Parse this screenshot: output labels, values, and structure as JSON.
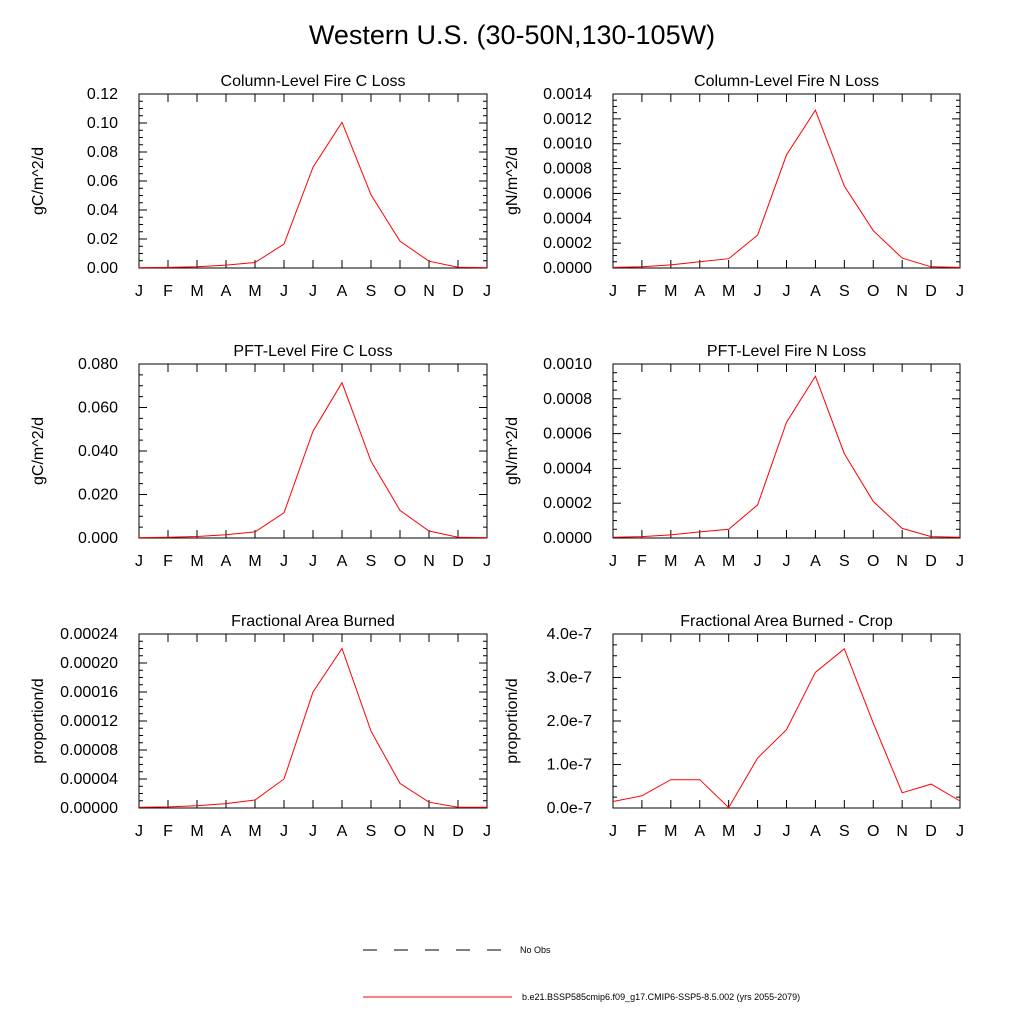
{
  "page_title": "Western U.S. (30-50N,130-105W)",
  "legend": {
    "entries": [
      {
        "label": "No Obs",
        "style": "dashed",
        "color": "#000000"
      },
      {
        "label": "b.e21.BSSP585cmip6.f09_g17.CMIP6-SSP5-8.5.002 (yrs 2055-2079)",
        "style": "solid",
        "color": "#ff0000"
      }
    ]
  },
  "chart_data": [
    {
      "type": "line",
      "title": "Column-Level Fire C Loss",
      "ylabel": "gC/m^2/d",
      "x": [
        "J",
        "F",
        "M",
        "A",
        "M",
        "J",
        "J",
        "A",
        "S",
        "O",
        "N",
        "D",
        "J"
      ],
      "ylim": [
        0,
        0.12
      ],
      "yticks": [
        "0.00",
        "0.02",
        "0.04",
        "0.06",
        "0.08",
        "0.10",
        "0.12"
      ],
      "series": [
        {
          "color": "#ff0000",
          "values": [
            0.0003,
            0.0004,
            0.0008,
            0.002,
            0.0038,
            0.0165,
            0.0695,
            0.1005,
            0.0505,
            0.0185,
            0.0047,
            0.0005,
            0.0003
          ]
        }
      ]
    },
    {
      "type": "line",
      "title": "Column-Level Fire N Loss",
      "ylabel": "gN/m^2/d",
      "x": [
        "J",
        "F",
        "M",
        "A",
        "M",
        "J",
        "J",
        "A",
        "S",
        "O",
        "N",
        "D",
        "J"
      ],
      "ylim": [
        0,
        0.0014
      ],
      "yticks": [
        "0.0000",
        "0.0002",
        "0.0004",
        "0.0006",
        "0.0008",
        "0.0010",
        "0.0012",
        "0.0014"
      ],
      "series": [
        {
          "color": "#ff0000",
          "values": [
            5e-06,
            1e-05,
            2.5e-05,
            5e-05,
            7.5e-05,
            0.000265,
            0.00091,
            0.00127,
            0.00066,
            0.0003,
            8e-05,
            1e-05,
            5e-06
          ]
        }
      ]
    },
    {
      "type": "line",
      "title": "PFT-Level Fire C Loss",
      "ylabel": "gC/m^2/d",
      "x": [
        "J",
        "F",
        "M",
        "A",
        "M",
        "J",
        "J",
        "A",
        "S",
        "O",
        "N",
        "D",
        "J"
      ],
      "ylim": [
        0,
        0.08
      ],
      "yticks": [
        "0.000",
        "0.020",
        "0.040",
        "0.060",
        "0.080"
      ],
      "series": [
        {
          "color": "#ff0000",
          "values": [
            0.0002,
            0.0003,
            0.0007,
            0.0015,
            0.0028,
            0.0116,
            0.0491,
            0.0714,
            0.0353,
            0.0127,
            0.0032,
            0.0003,
            0.0002
          ]
        }
      ]
    },
    {
      "type": "line",
      "title": "PFT-Level Fire N Loss",
      "ylabel": "gN/m^2/d",
      "x": [
        "J",
        "F",
        "M",
        "A",
        "M",
        "J",
        "J",
        "A",
        "S",
        "O",
        "N",
        "D",
        "J"
      ],
      "ylim": [
        0,
        0.001
      ],
      "yticks": [
        "0.0000",
        "0.0002",
        "0.0004",
        "0.0006",
        "0.0008",
        "0.0010"
      ],
      "series": [
        {
          "color": "#ff0000",
          "values": [
            4e-06,
            8e-06,
            1.8e-05,
            3.5e-05,
            5e-05,
            0.00019,
            0.000665,
            0.00093,
            0.000485,
            0.00021,
            5.5e-05,
            8e-06,
            4e-06
          ]
        }
      ]
    },
    {
      "type": "line",
      "title": "Fractional Area Burned",
      "ylabel": "proportion/d",
      "x": [
        "J",
        "F",
        "M",
        "A",
        "M",
        "J",
        "J",
        "A",
        "S",
        "O",
        "N",
        "D",
        "J"
      ],
      "ylim": [
        0,
        0.00024
      ],
      "yticks": [
        "0.00000",
        "0.00004",
        "0.00008",
        "0.00012",
        "0.00016",
        "0.00020",
        "0.00024"
      ],
      "series": [
        {
          "color": "#ff0000",
          "values": [
            1e-06,
            1.5e-06,
            3e-06,
            6e-06,
            1.1e-05,
            4e-05,
            0.00016,
            0.00022,
            0.000106,
            3.4e-05,
            8e-06,
            1e-06,
            1e-06
          ]
        }
      ]
    },
    {
      "type": "line",
      "title": "Fractional Area Burned - Crop",
      "ylabel": "proportion/d",
      "x": [
        "J",
        "F",
        "M",
        "A",
        "M",
        "J",
        "J",
        "A",
        "S",
        "O",
        "N",
        "D",
        "J"
      ],
      "ylim": [
        0,
        4e-07
      ],
      "yticks": [
        "0.0e-7",
        "1.0e-7",
        "2.0e-7",
        "3.0e-7",
        "4.0e-7"
      ],
      "series": [
        {
          "color": "#ff0000",
          "values": [
            1.5e-08,
            2.8e-08,
            6.5e-08,
            6.5e-08,
            1e-09,
            1.15e-07,
            1.8e-07,
            3.12e-07,
            3.66e-07,
            1.95e-07,
            3.5e-08,
            5.5e-08,
            1.6e-08
          ]
        }
      ]
    }
  ]
}
